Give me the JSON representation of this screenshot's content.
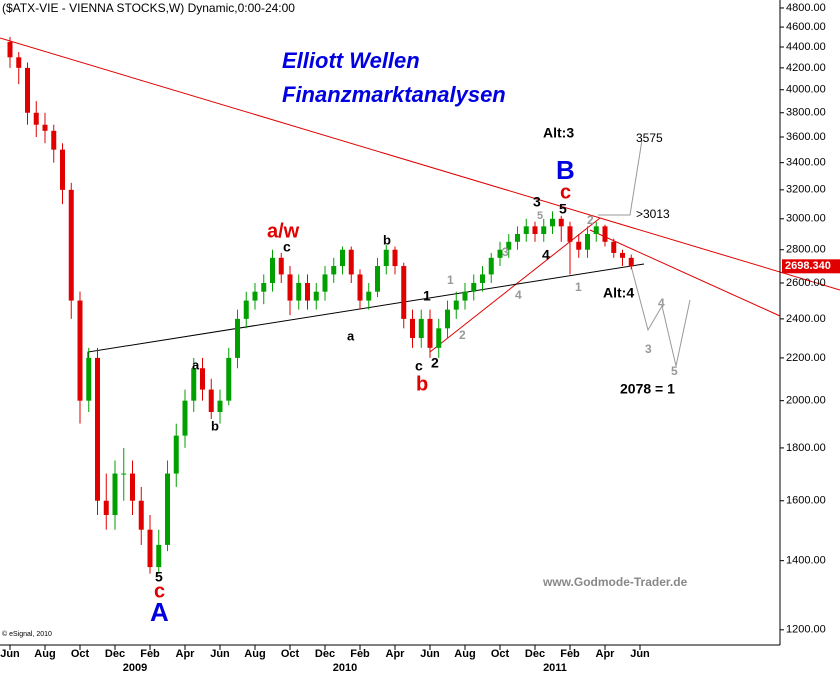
{
  "chart_data": {
    "type": "candlestick",
    "title": "($ATX-VIE - VIENNA STOCKS,W) Dynamic,0:00-24:00",
    "log_scale": true,
    "up_color": "#00a000",
    "down_color": "#e00000",
    "categories": [
      "Jun",
      null,
      null,
      null,
      "Aug",
      null,
      null,
      null,
      "Oct",
      null,
      null,
      null,
      "Dec",
      null,
      null,
      null,
      "Feb",
      null,
      null,
      null,
      "Apr",
      null,
      null,
      null,
      "Jun",
      null,
      null,
      null,
      "Aug",
      null,
      null,
      null,
      "Oct",
      null,
      null,
      null,
      "Dec",
      null,
      null,
      null,
      "Feb",
      null,
      null,
      null,
      "Apr",
      null,
      null,
      null,
      "Jun",
      null,
      null,
      null,
      "Aug",
      null,
      null,
      null,
      "Oct",
      null,
      null,
      null,
      "Dec",
      null,
      null,
      null,
      "Feb",
      null,
      null,
      null,
      "Apr",
      null,
      null,
      null,
      "Jun"
    ],
    "year_labels": [
      "2009",
      "2010",
      "2011"
    ],
    "open": [
      4450,
      4300,
      4200,
      3800,
      3700,
      3650,
      3500,
      3200,
      2500,
      2000,
      2200,
      1600,
      1550,
      1700,
      1700,
      1600,
      1500,
      1380,
      1450,
      1700,
      1850,
      2000,
      2150,
      2050,
      1950,
      2000,
      2200,
      2400,
      2500,
      2550,
      2600,
      2750,
      2650,
      2500,
      2600,
      2500,
      2550,
      2650,
      2700,
      2800,
      2650,
      2500,
      2550,
      2700,
      2800,
      2700,
      2400,
      2300,
      2400,
      2250,
      2350,
      2450,
      2500,
      2550,
      2600,
      2650,
      2750,
      2800,
      2850,
      2900,
      2950,
      2900,
      2950,
      3000,
      2950,
      2850,
      2800,
      2900,
      2950,
      2850,
      2780,
      2750,
      null
    ],
    "high": [
      4500,
      4350,
      4250,
      3900,
      3800,
      3700,
      3550,
      3250,
      2550,
      2250,
      2250,
      1700,
      1750,
      1800,
      1750,
      1650,
      1550,
      1500,
      1750,
      1900,
      2050,
      2200,
      2200,
      2100,
      2050,
      2250,
      2450,
      2550,
      2600,
      2650,
      2800,
      2780,
      2700,
      2650,
      2650,
      2600,
      2700,
      2750,
      2820,
      2820,
      2680,
      2600,
      2750,
      2830,
      2820,
      2720,
      2450,
      2450,
      2450,
      2400,
      2500,
      2550,
      2600,
      2650,
      2700,
      2780,
      2850,
      2900,
      2950,
      3000,
      2980,
      3000,
      3050,
      3020,
      2980,
      2900,
      2950,
      2980,
      2960,
      2870,
      2800,
      2770,
      null
    ],
    "low": [
      4200,
      4050,
      3700,
      3600,
      3550,
      3400,
      3100,
      2400,
      1900,
      1950,
      1550,
      1500,
      1500,
      1600,
      1550,
      1450,
      1360,
      1360,
      1430,
      1650,
      1800,
      1950,
      2000,
      1920,
      1900,
      1980,
      2150,
      2350,
      2450,
      2480,
      2550,
      2600,
      2420,
      2450,
      2450,
      2450,
      2500,
      2600,
      2650,
      2600,
      2450,
      2450,
      2520,
      2650,
      2650,
      2350,
      2250,
      2250,
      2200,
      2200,
      2300,
      2400,
      2450,
      2500,
      2550,
      2600,
      2700,
      2750,
      2800,
      2850,
      2850,
      2850,
      2900,
      2850,
      2650,
      2750,
      2750,
      2850,
      2820,
      2750,
      2700,
      2680,
      null
    ],
    "close": [
      4300,
      4200,
      3800,
      3700,
      3650,
      3500,
      3200,
      2500,
      2000,
      2200,
      1600,
      1550,
      1700,
      1700,
      1600,
      1500,
      1380,
      1450,
      1700,
      1850,
      2000,
      2150,
      2050,
      1950,
      2000,
      2200,
      2400,
      2500,
      2550,
      2600,
      2750,
      2650,
      2500,
      2600,
      2500,
      2550,
      2650,
      2700,
      2800,
      2650,
      2500,
      2550,
      2700,
      2800,
      2700,
      2400,
      2300,
      2400,
      2250,
      2350,
      2450,
      2500,
      2550,
      2600,
      2650,
      2750,
      2800,
      2850,
      2900,
      2950,
      2900,
      2950,
      3000,
      2950,
      2850,
      2800,
      2900,
      2950,
      2850,
      2780,
      2750,
      2698.34,
      null
    ],
    "last_close_label": "2698.340",
    "ylim": [
      1160,
      4886
    ],
    "yticks": [
      {
        "value": 1200,
        "label": "1200.00"
      },
      {
        "value": 1400,
        "label": "1400.00"
      },
      {
        "value": 1600,
        "label": "1600.00"
      },
      {
        "value": 1800,
        "label": "1800.00"
      },
      {
        "value": 2000,
        "label": "2000.00"
      },
      {
        "value": 2200,
        "label": "2200.00"
      },
      {
        "value": 2400,
        "label": "2400.00"
      },
      {
        "value": 2600,
        "label": "2600.00"
      },
      {
        "value": 2800,
        "label": "2800.00"
      },
      {
        "value": 3000,
        "label": "3000.00"
      },
      {
        "value": 3200,
        "label": "3200.00"
      },
      {
        "value": 3400,
        "label": "3400.00"
      },
      {
        "value": 3600,
        "label": "3600.00"
      },
      {
        "value": 3800,
        "label": "3800.00"
      },
      {
        "value": 4000,
        "label": "4000.00"
      },
      {
        "value": 4200,
        "label": "4200.00"
      },
      {
        "value": 4400,
        "label": "4400.00"
      },
      {
        "value": 4600,
        "label": "4600.00"
      },
      {
        "value": 4800,
        "label": "4800.00"
      }
    ],
    "annotations": [
      {
        "text": "Elliott Wellen",
        "color": "#0000e0"
      },
      {
        "text": "Finanzmarktanalysen",
        "color": "#0000e0"
      },
      {
        "text": "Alt:3",
        "color": "#000000"
      },
      {
        "text": "B",
        "color": "#0000e0"
      },
      {
        "text": "c",
        "color": "#e00000"
      },
      {
        "text": "3575",
        "color": "#000000"
      },
      {
        "text": ">3013",
        "color": "#000000"
      },
      {
        "text": "a/w",
        "color": "#e00000"
      },
      {
        "text": "c",
        "color": "#000000"
      },
      {
        "text": "b",
        "color": "#000000"
      },
      {
        "text": "3",
        "color": "#000000"
      },
      {
        "text": "5",
        "color": "#999999"
      },
      {
        "text": "5",
        "color": "#000000"
      },
      {
        "text": "4",
        "color": "#000000"
      },
      {
        "text": "2",
        "color": "#999999"
      },
      {
        "text": "1",
        "color": "#999999"
      },
      {
        "text": "Alt:4",
        "color": "#000000"
      },
      {
        "text": "3",
        "color": "#999999"
      },
      {
        "text": "4",
        "color": "#999999"
      },
      {
        "text": "1",
        "color": "#999999"
      },
      {
        "text": "2",
        "color": "#999999"
      },
      {
        "text": "1",
        "color": "#000000"
      },
      {
        "text": "a",
        "color": "#000000"
      },
      {
        "text": "c",
        "color": "#000000"
      },
      {
        "text": "2",
        "color": "#000000"
      },
      {
        "text": "b",
        "color": "#e00000"
      },
      {
        "text": "3",
        "color": "#999999"
      },
      {
        "text": "4",
        "color": "#999999"
      },
      {
        "text": "5",
        "color": "#999999"
      },
      {
        "text": "2078 = 1",
        "color": "#000000"
      },
      {
        "text": "a",
        "color": "#000000"
      },
      {
        "text": "b",
        "color": "#000000"
      },
      {
        "text": "5",
        "color": "#000000"
      },
      {
        "text": "c",
        "color": "#e00000"
      },
      {
        "text": "A",
        "color": "#0000e0"
      },
      {
        "text": "www.Godmode-Trader.de",
        "color": "#888888"
      },
      {
        "text": "© eSignal, 2010",
        "color": "#000000"
      }
    ]
  }
}
